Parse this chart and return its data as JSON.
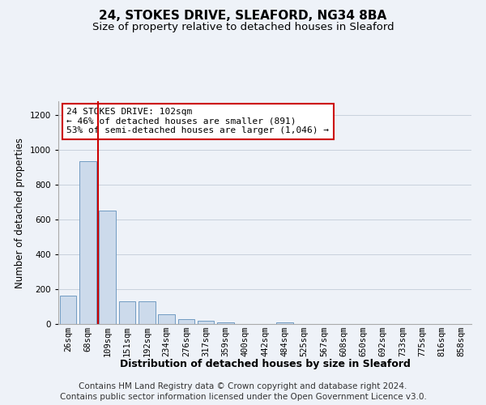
{
  "title1": "24, STOKES DRIVE, SLEAFORD, NG34 8BA",
  "title2": "Size of property relative to detached houses in Sleaford",
  "xlabel": "Distribution of detached houses by size in Sleaford",
  "ylabel": "Number of detached properties",
  "footer1": "Contains HM Land Registry data © Crown copyright and database right 2024.",
  "footer2": "Contains public sector information licensed under the Open Government Licence v3.0.",
  "categories": [
    "26sqm",
    "68sqm",
    "109sqm",
    "151sqm",
    "192sqm",
    "234sqm",
    "276sqm",
    "317sqm",
    "359sqm",
    "400sqm",
    "442sqm",
    "484sqm",
    "525sqm",
    "567sqm",
    "608sqm",
    "650sqm",
    "692sqm",
    "733sqm",
    "775sqm",
    "816sqm",
    "858sqm"
  ],
  "values": [
    162,
    935,
    650,
    130,
    130,
    57,
    30,
    17,
    10,
    0,
    0,
    10,
    0,
    0,
    0,
    0,
    0,
    0,
    0,
    0,
    0
  ],
  "ylim": [
    0,
    1280
  ],
  "yticks": [
    0,
    200,
    400,
    600,
    800,
    1000,
    1200
  ],
  "bar_color": "#ccdaeb",
  "bar_edge_color": "#6090bb",
  "bar_edge_width": 0.6,
  "vline_x": 1.5,
  "vline_color": "#cc0000",
  "vline_linewidth": 1.5,
  "annotation_box_text": "24 STOKES DRIVE: 102sqm\n← 46% of detached houses are smaller (891)\n53% of semi-detached houses are larger (1,046) →",
  "annotation_box_color": "#cc0000",
  "annotation_box_facecolor": "white",
  "background_color": "#eef2f8",
  "plot_bg_color": "#eef2f8",
  "grid_color": "#c8d0dc",
  "title1_fontsize": 11,
  "title2_fontsize": 9.5,
  "xlabel_fontsize": 9,
  "ylabel_fontsize": 8.5,
  "tick_fontsize": 7.5,
  "footer_fontsize": 7.5,
  "ann_fontsize": 8.0
}
